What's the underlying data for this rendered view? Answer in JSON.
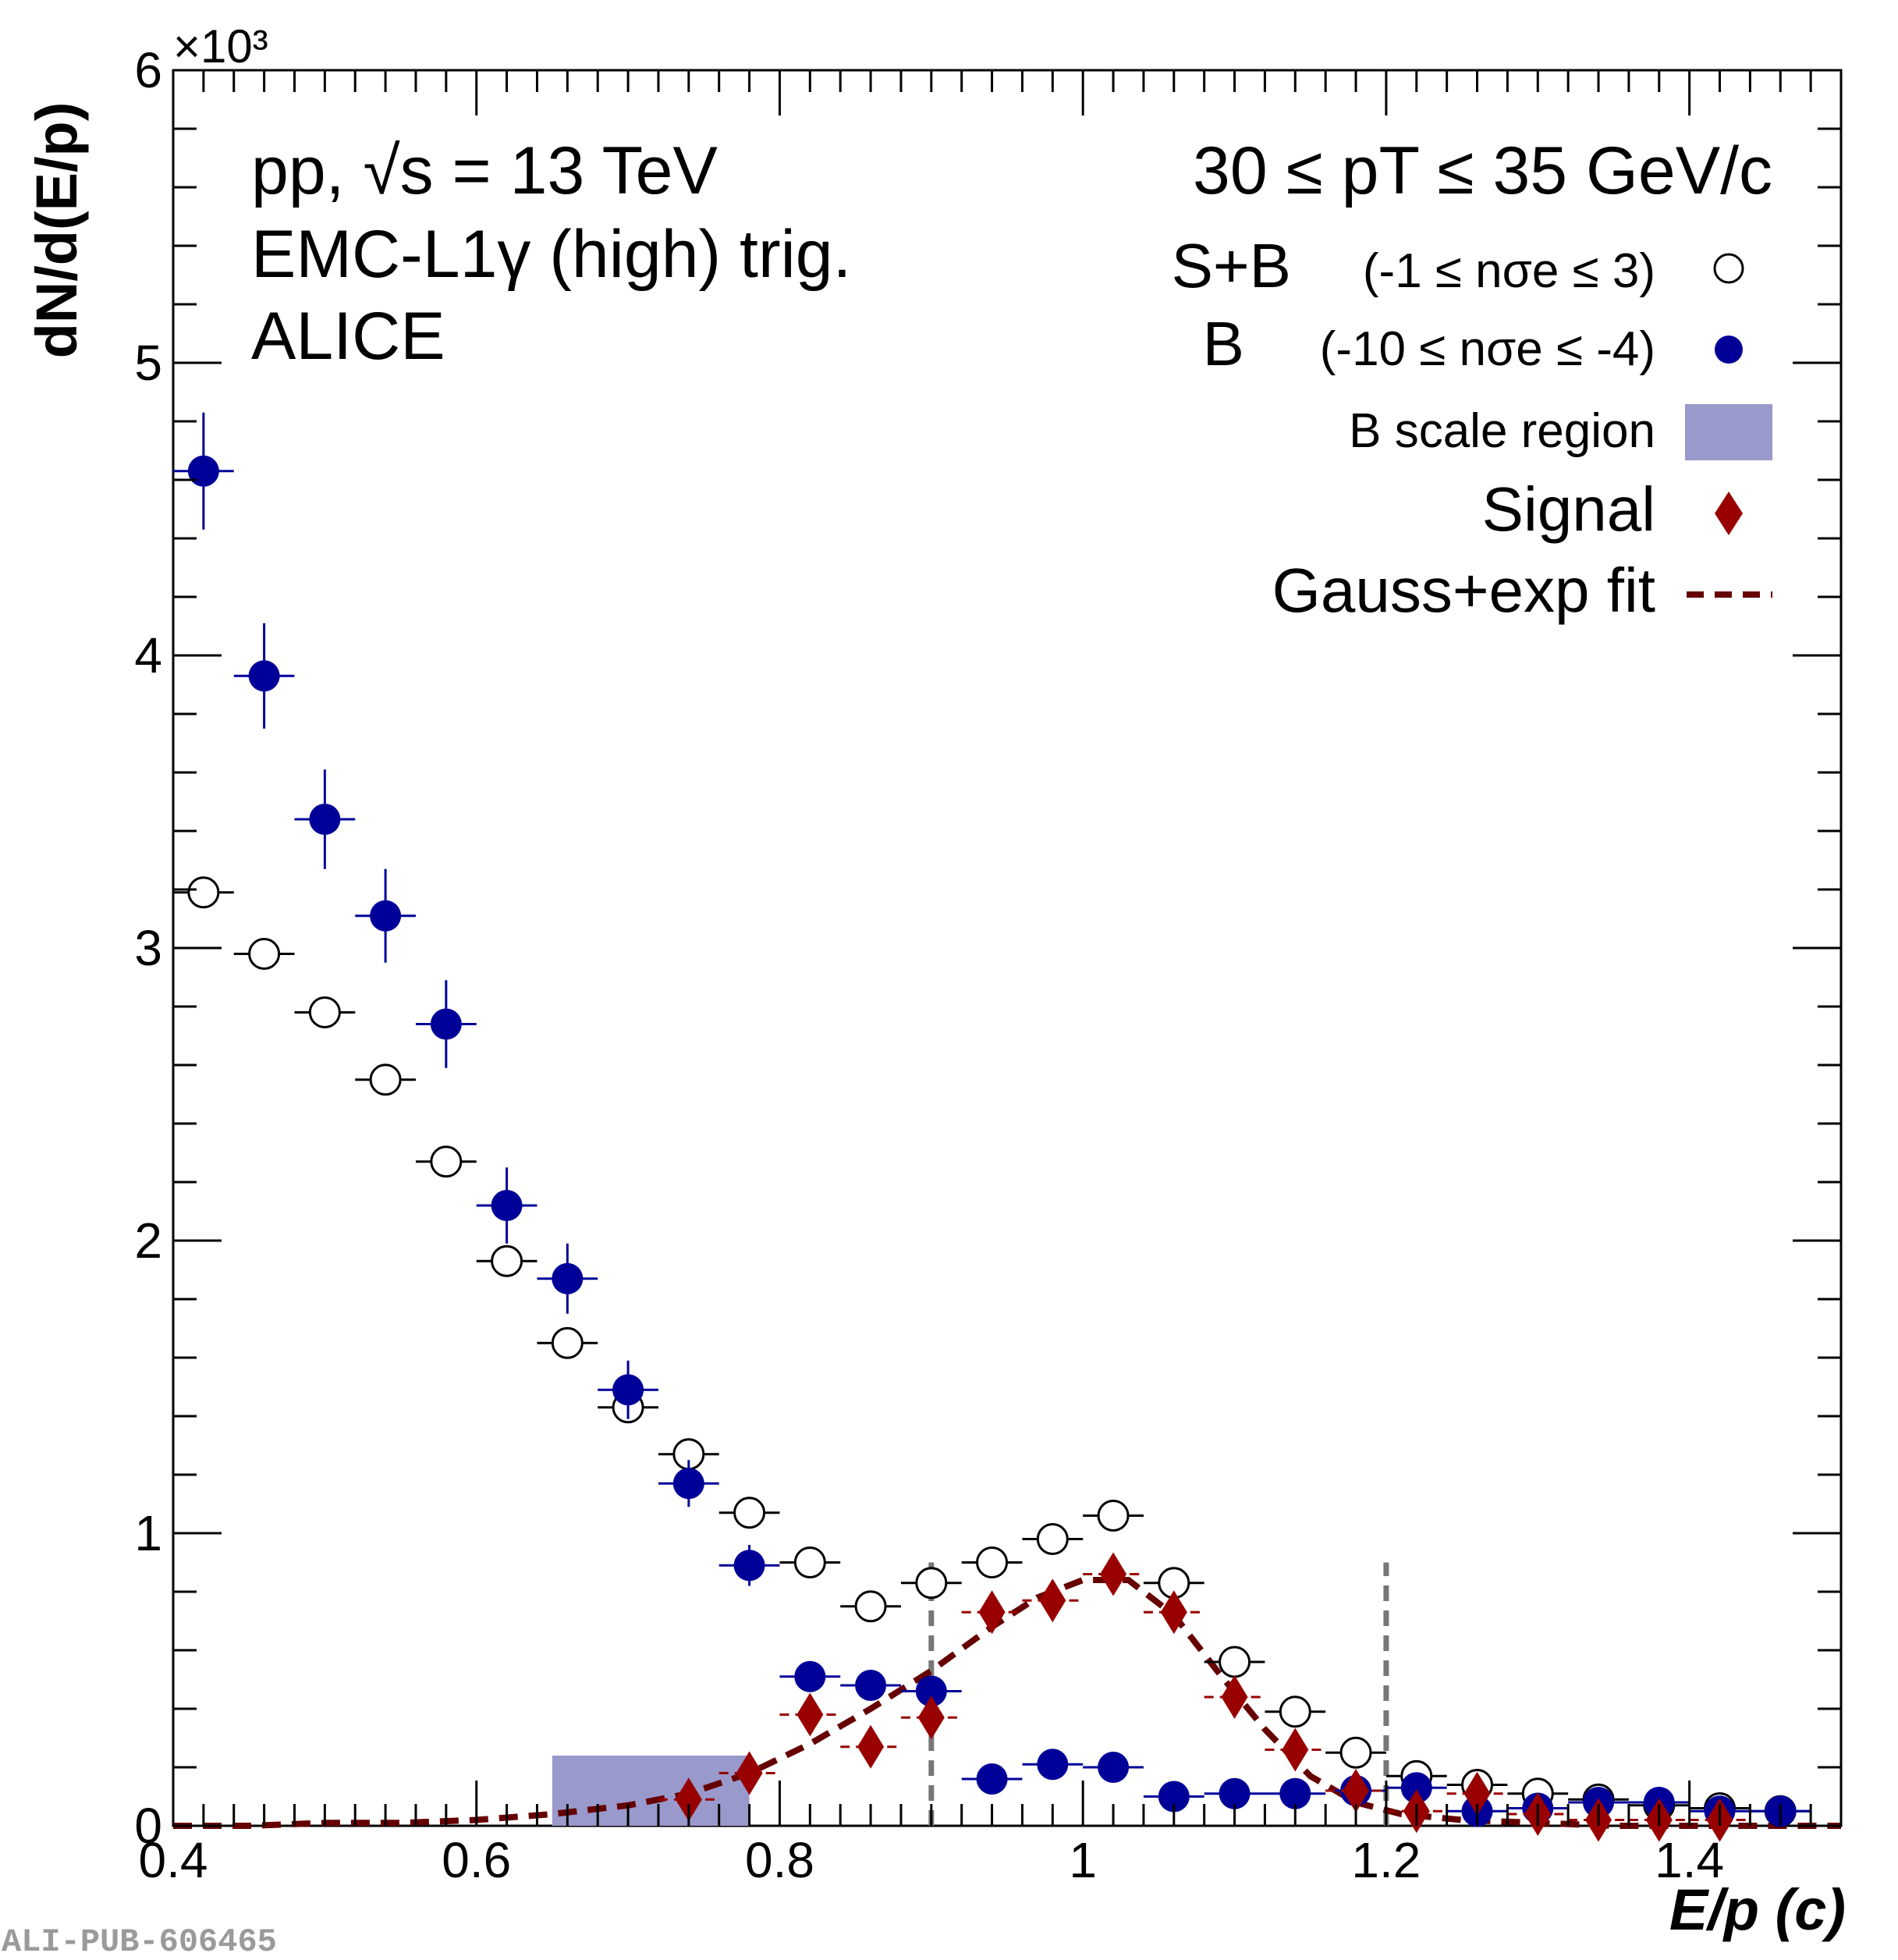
{
  "chart_data": {
    "type": "scatter",
    "x_label_text": "E/p (c)",
    "y_label_text": "dN/d(E/p)",
    "y_multiplier_text": "×10³",
    "xlim": [
      0.4,
      1.5
    ],
    "ylim": [
      0,
      6
    ],
    "y_unit_multiplier": 1000,
    "x_ticks": [
      0.4,
      0.6,
      0.8,
      1.0,
      1.2,
      1.4
    ],
    "x_tick_labels": [
      "0.4",
      "0.6",
      "0.8",
      "1",
      "1.2",
      "1.4"
    ],
    "y_ticks": [
      0,
      1,
      2,
      3,
      4,
      5,
      6
    ],
    "y_tick_labels": [
      "0",
      "1",
      "2",
      "3",
      "4",
      "5",
      "6"
    ],
    "bin_half_width": 0.02,
    "annotations": [
      "pp, √s = 13 TeV",
      "EMC-L1γ (high) trig.",
      "ALICE"
    ],
    "pt_range_text": "30 ≤ pT ≤ 35 GeV/c",
    "legend_position": "top-right",
    "legend": [
      {
        "name": "S+B",
        "selection": "(-1 ≤ nσe ≤  3)",
        "marker": "open-circle",
        "color": "#000000"
      },
      {
        "name": "B",
        "selection": "(-10 ≤ nσe ≤ -4)",
        "marker": "filled-circle",
        "color": "#000099"
      },
      {
        "name": "B scale region",
        "marker": "box",
        "color": "#9999cc"
      },
      {
        "name": "Signal",
        "marker": "diamond",
        "color": "#990000"
      },
      {
        "name": "Gauss+exp fit",
        "marker": "dashed-line",
        "color": "#660000"
      }
    ],
    "series": [
      {
        "name": "S+B",
        "x": [
          0.42,
          0.46,
          0.5,
          0.54,
          0.58,
          0.62,
          0.66,
          0.7,
          0.74,
          0.78,
          0.82,
          0.86,
          0.9,
          0.94,
          0.98,
          1.02,
          1.06,
          1.1,
          1.14,
          1.18,
          1.22,
          1.26,
          1.3,
          1.34,
          1.38,
          1.42,
          1.46
        ],
        "y": [
          3.19,
          2.98,
          2.78,
          2.55,
          2.27,
          1.93,
          1.65,
          1.43,
          1.27,
          1.07,
          0.9,
          0.75,
          0.83,
          0.9,
          0.98,
          1.06,
          0.83,
          0.56,
          0.39,
          0.25,
          0.17,
          0.14,
          0.11,
          0.09,
          0.07,
          0.06,
          0.05
        ],
        "err": [
          0.02,
          0.02,
          0.02,
          0.02,
          0.02,
          0.02,
          0.02,
          0.02,
          0.02,
          0.02,
          0.02,
          0.02,
          0.02,
          0.02,
          0.02,
          0.02,
          0.02,
          0.02,
          0.02,
          0.02,
          0.01,
          0.01,
          0.01,
          0.01,
          0.01,
          0.01,
          0.01
        ]
      },
      {
        "name": "B",
        "x": [
          0.42,
          0.46,
          0.5,
          0.54,
          0.58,
          0.62,
          0.66,
          0.7,
          0.74,
          0.78,
          0.82,
          0.86,
          0.9,
          0.94,
          0.98,
          1.02,
          1.06,
          1.1,
          1.14,
          1.18,
          1.22,
          1.26,
          1.3,
          1.34,
          1.38,
          1.42,
          1.46
        ],
        "y": [
          4.63,
          3.93,
          3.44,
          3.11,
          2.74,
          2.12,
          1.87,
          1.49,
          1.17,
          0.89,
          0.51,
          0.48,
          0.46,
          0.16,
          0.21,
          0.2,
          0.1,
          0.11,
          0.11,
          0.12,
          0.13,
          0.05,
          0.06,
          0.08,
          0.08,
          0.05,
          0.05
        ],
        "err": [
          0.2,
          0.18,
          0.17,
          0.16,
          0.15,
          0.13,
          0.12,
          0.1,
          0.08,
          0.07,
          0.05,
          0.05,
          0.05,
          0.02,
          0.02,
          0.02,
          0.01,
          0.01,
          0.01,
          0.01,
          0.01,
          0.01,
          0.01,
          0.01,
          0.01,
          0.01,
          0.01
        ]
      },
      {
        "name": "Signal",
        "x": [
          0.74,
          0.78,
          0.82,
          0.86,
          0.9,
          0.94,
          0.98,
          1.02,
          1.06,
          1.1,
          1.14,
          1.18,
          1.22,
          1.26,
          1.3,
          1.34,
          1.38,
          1.42
        ],
        "y": [
          0.09,
          0.18,
          0.38,
          0.27,
          0.37,
          0.73,
          0.77,
          0.86,
          0.73,
          0.44,
          0.26,
          0.12,
          0.05,
          0.11,
          0.04,
          0.02,
          0.02,
          0.02
        ],
        "err": [
          0.07,
          0.07,
          0.06,
          0.06,
          0.06,
          0.05,
          0.05,
          0.05,
          0.04,
          0.04,
          0.03,
          0.03,
          0.02,
          0.02,
          0.02,
          0.02,
          0.02,
          0.02
        ]
      }
    ],
    "fit": {
      "name": "Gauss+exp fit",
      "x": [
        0.4,
        0.45,
        0.5,
        0.55,
        0.6,
        0.65,
        0.7,
        0.74,
        0.78,
        0.82,
        0.86,
        0.9,
        0.94,
        0.97,
        1.0,
        1.03,
        1.06,
        1.09,
        1.12,
        1.15,
        1.18,
        1.21,
        1.25,
        1.3,
        1.35,
        1.4,
        1.45,
        1.5
      ],
      "y": [
        0.0,
        0.0,
        0.01,
        0.01,
        0.02,
        0.04,
        0.07,
        0.11,
        0.18,
        0.28,
        0.4,
        0.53,
        0.68,
        0.78,
        0.84,
        0.84,
        0.72,
        0.52,
        0.33,
        0.17,
        0.08,
        0.04,
        0.02,
        0.01,
        0.0,
        0.0,
        0.0,
        0.0
      ]
    },
    "b_scale_region": {
      "x_range": [
        0.65,
        0.78
      ],
      "y_max": 0.24
    },
    "integration_window_lines": [
      0.9,
      1.2
    ],
    "integration_window_ymax": 0.9
  },
  "watermark": "ALI-PUB-606465"
}
